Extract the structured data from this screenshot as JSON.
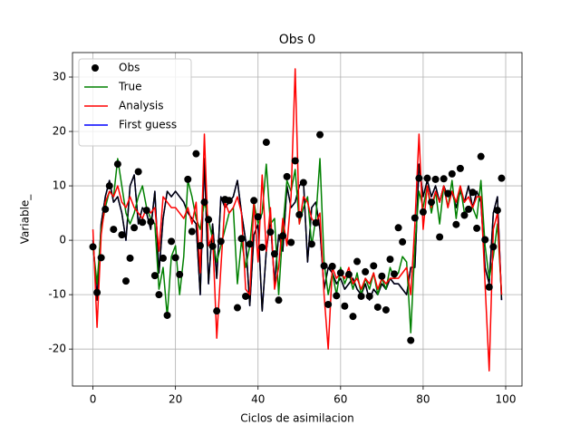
{
  "chart_data": {
    "type": "line",
    "title": "Obs 0",
    "xlabel": "Ciclos de asimilacion",
    "ylabel": "Variable_",
    "xlim": [
      -4.95,
      103.95
    ],
    "ylim": [
      -26.8,
      34.5
    ],
    "xticks": [
      0,
      20,
      40,
      60,
      80,
      100
    ],
    "yticks": [
      -20,
      -10,
      0,
      10,
      20,
      30
    ],
    "grid": true,
    "legend": "upper left",
    "x": [
      0,
      1,
      2,
      3,
      4,
      5,
      6,
      7,
      8,
      9,
      10,
      11,
      12,
      13,
      14,
      15,
      16,
      17,
      18,
      19,
      20,
      21,
      22,
      23,
      24,
      25,
      26,
      27,
      28,
      29,
      30,
      31,
      32,
      33,
      34,
      35,
      36,
      37,
      38,
      39,
      40,
      41,
      42,
      43,
      44,
      45,
      46,
      47,
      48,
      49,
      50,
      51,
      52,
      53,
      54,
      55,
      56,
      57,
      58,
      59,
      60,
      61,
      62,
      63,
      64,
      65,
      66,
      67,
      68,
      69,
      70,
      71,
      72,
      73,
      74,
      75,
      76,
      77,
      78,
      79,
      80,
      81,
      82,
      83,
      84,
      85,
      86,
      87,
      88,
      89,
      90,
      91,
      92,
      93,
      94,
      95,
      96,
      97,
      98,
      99
    ],
    "series": [
      {
        "name": "Obs",
        "color": "#000000",
        "style": "markers",
        "x": [
          0,
          1,
          2,
          3,
          4,
          5,
          6,
          7,
          8,
          9,
          10,
          11,
          12,
          13,
          14,
          15,
          16,
          17,
          18,
          19,
          20,
          21,
          23,
          24,
          25,
          26,
          27,
          28,
          29,
          30,
          31,
          32,
          33,
          35,
          36,
          37,
          38,
          39,
          40,
          41,
          42,
          43,
          44,
          45,
          46,
          47,
          48,
          49,
          50,
          51,
          53,
          54,
          55,
          56,
          57,
          58,
          59,
          60,
          61,
          62,
          63,
          64,
          65,
          66,
          67,
          68,
          69,
          70,
          71,
          72,
          73,
          74,
          75,
          77,
          78,
          79,
          80,
          81,
          82,
          83,
          84,
          85,
          86,
          87,
          88,
          89,
          90,
          91,
          92,
          93,
          94,
          95,
          96,
          97,
          98,
          99
        ],
        "values": [
          -1.2,
          -9.6,
          -3.2,
          5.7,
          10,
          2,
          14,
          1,
          -7.5,
          -3.3,
          2.3,
          12.6,
          3.3,
          5.5,
          3.4,
          -6.5,
          -10,
          -3.3,
          -13.8,
          -0.2,
          -3.2,
          -6.3,
          11.2,
          1.6,
          15.9,
          -1,
          7,
          3.8,
          -1.1,
          -13,
          -0.2,
          7.5,
          7.3,
          -12.4,
          0.3,
          -10.3,
          -0.7,
          7.3,
          4.3,
          -1.3,
          18,
          1.5,
          -2.5,
          -11,
          0.8,
          11.7,
          -0.4,
          14.6,
          4.7,
          10.6,
          -0.7,
          3.2,
          19.4,
          -4.7,
          -11.8,
          -4.8,
          -10.2,
          -6,
          -12.1,
          -6.3,
          -14,
          -3.9,
          -10.3,
          -5.8,
          -10.3,
          -4.7,
          -12.3,
          -6.6,
          -12.8,
          -3.5,
          -6.2,
          2.3,
          -0.3,
          -18.4,
          4.1,
          11.4,
          5.2,
          11.4,
          7,
          11.2,
          0.6,
          11.3,
          8.6,
          12.2,
          2.9,
          13.2,
          4.6,
          5.7,
          8.8,
          2.2,
          15.4,
          0.1,
          -8.6,
          -1.2,
          5.5,
          11.4
        ]
      },
      {
        "name": "True",
        "color": "#008000",
        "values": [
          -1,
          -8,
          2,
          6,
          9,
          8,
          15,
          10,
          5,
          3,
          5,
          8,
          10,
          6,
          4,
          3,
          -9,
          -5,
          -14,
          -3,
          -1,
          -10,
          -3,
          11,
          8,
          4,
          2,
          7,
          4,
          0,
          -4,
          -1,
          2,
          5,
          6,
          -8,
          0,
          -5,
          -1,
          7,
          3,
          5,
          14,
          3,
          4,
          -10,
          2,
          11,
          9,
          13,
          3,
          6,
          8,
          -1,
          4,
          15,
          -4,
          -10,
          -6,
          -10,
          -5,
          -8,
          -6,
          -9,
          -6,
          -10,
          -7,
          -9,
          -6,
          -10,
          -7,
          -9,
          -5,
          -7,
          -6,
          -3,
          -4,
          -17,
          -1,
          9,
          6,
          10,
          5,
          9,
          3,
          10,
          6,
          11,
          4,
          10,
          5,
          6,
          6,
          4,
          11,
          -1,
          -7,
          -3,
          3,
          -10
        ]
      },
      {
        "name": "Analysis",
        "color": "#ff0000",
        "values": [
          2,
          -16,
          1,
          7,
          9,
          8,
          10,
          7,
          6,
          8,
          6,
          5,
          4,
          6,
          5,
          6,
          -2,
          8,
          7,
          6,
          6,
          5,
          4,
          6,
          3,
          7,
          -6,
          19.5,
          -1,
          1,
          -18,
          -5,
          7,
          5,
          6,
          8,
          5,
          -9,
          -10,
          7,
          -4,
          12,
          -2,
          6,
          -9,
          -5,
          4,
          -1,
          8,
          31.5,
          3,
          8,
          7,
          4,
          3,
          5,
          -10,
          -20,
          -5,
          -7,
          -6,
          -7,
          -5,
          -8,
          -7,
          -9,
          -7,
          -8,
          -6,
          -9,
          -7,
          -8,
          -7,
          -7,
          -7,
          -6,
          -5,
          -10,
          3,
          19.5,
          2,
          10,
          6,
          9,
          7,
          10,
          6,
          9,
          7,
          10,
          7,
          8,
          6,
          8,
          8,
          -8,
          -24,
          2,
          5,
          -10
        ]
      },
      {
        "name": "First guess",
        "color": "#0000ff",
        "values": [
          0,
          -11,
          3,
          8,
          11,
          7,
          8,
          5,
          0,
          10,
          12,
          3,
          6,
          5,
          2,
          9,
          -6,
          4,
          9,
          8,
          9,
          8,
          7,
          5,
          4,
          3,
          -10,
          15,
          -8,
          3,
          -7,
          8,
          6,
          7,
          8,
          11,
          5,
          0,
          -12,
          1,
          3,
          -13,
          -2,
          4,
          -8,
          1,
          -2,
          10,
          6,
          7,
          10,
          11,
          -4,
          6,
          7,
          2,
          -9,
          -5,
          -6,
          -8,
          -7,
          -9,
          -8,
          -7,
          -9,
          -10,
          -8,
          -11,
          -9,
          -10,
          -8,
          -9,
          -7,
          -8,
          -8,
          -9,
          -10,
          -5,
          -5,
          14,
          8,
          11,
          8,
          10,
          7,
          10,
          8,
          9,
          6,
          9,
          7,
          10,
          6,
          9,
          7,
          -5,
          -8,
          5,
          8,
          -11
        ]
      },
      {
        "color": "#000000",
        "values": [
          0,
          -11,
          3,
          8,
          11,
          7,
          8,
          5,
          0,
          10,
          12,
          3,
          6,
          5,
          2,
          9,
          -6,
          4,
          9,
          8,
          9,
          8,
          7,
          5,
          4,
          3,
          -10,
          15,
          -8,
          3,
          -7,
          8,
          6,
          7,
          8,
          11,
          5,
          0,
          -12,
          1,
          3,
          -13,
          -2,
          4,
          -8,
          1,
          -2,
          10,
          6,
          7,
          10,
          11,
          -4,
          6,
          7,
          2,
          -9,
          -5,
          -6,
          -8,
          -7,
          -9,
          -8,
          -7,
          -9,
          -10,
          -8,
          -11,
          -9,
          -10,
          -8,
          -9,
          -7,
          -8,
          -8,
          -9,
          -10,
          -5,
          -5,
          14,
          8,
          11,
          8,
          10,
          7,
          10,
          8,
          9,
          6,
          9,
          7,
          10,
          6,
          9,
          7,
          -5,
          -8,
          5,
          8,
          -11
        ]
      }
    ]
  }
}
